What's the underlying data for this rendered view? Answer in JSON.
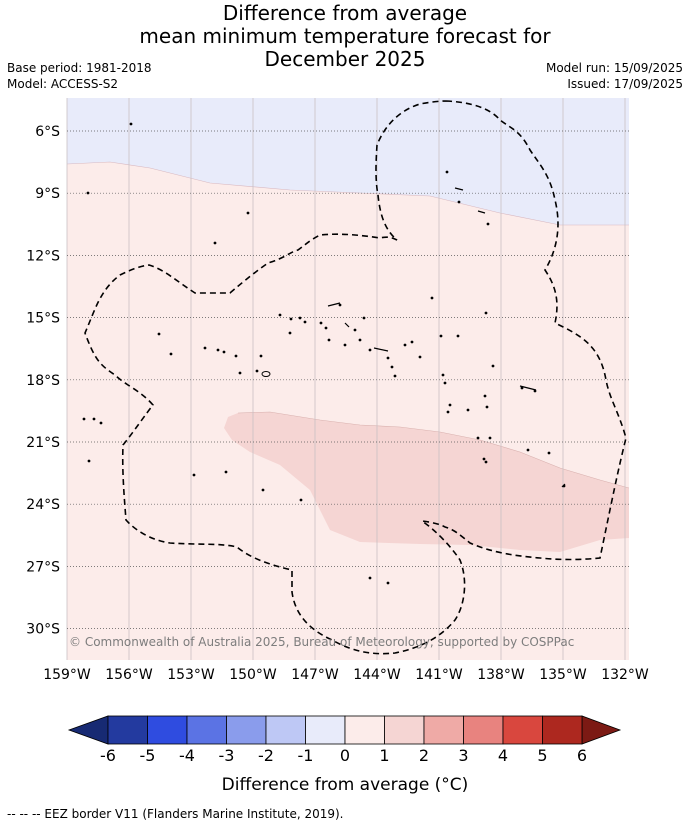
{
  "title": {
    "line1": "Difference from average",
    "line2": "mean minimum temperature forecast for",
    "line3": "December 2025"
  },
  "meta": {
    "base_period": "Base period: 1981-2018",
    "model": "Model: ACCESS-S2",
    "model_run": "Model run: 15/09/2025",
    "issued": "Issued: 17/09/2025"
  },
  "map": {
    "lat_ticks": [
      "6°S",
      "9°S",
      "12°S",
      "15°S",
      "18°S",
      "21°S",
      "24°S",
      "27°S",
      "30°S"
    ],
    "lon_ticks": [
      "159°W",
      "156°W",
      "153°W",
      "150°W",
      "147°W",
      "144°W",
      "141°W",
      "138°W",
      "135°W",
      "132°W"
    ],
    "copyright": "© Commonwealth of Australia 2025, Bureau of Meteorology, supported by COSPPac",
    "colors": {
      "band_minus1_0": "#e8ebfa",
      "band_0_1": "#fcecea",
      "band_1_2": "#f5d5d3"
    }
  },
  "colorbar": {
    "ticks": [
      "-6",
      "-5",
      "-4",
      "-3",
      "-2",
      "-1",
      "0",
      "1",
      "2",
      "3",
      "4",
      "5",
      "6"
    ],
    "colors": [
      "#233a9f",
      "#2f4ce0",
      "#5b73e4",
      "#8a9cec",
      "#bec8f5",
      "#e8ebfa",
      "#fcecea",
      "#f5d5d3",
      "#efaaa6",
      "#e8837f",
      "#d9473e",
      "#ad281f"
    ],
    "low_extend_color": "#172a73",
    "high_extend_color": "#7c1a14",
    "label": "Difference from average (°C)"
  },
  "footer": {
    "legend_line": "--  --  -- EEZ border V11 (Flanders Marine Institute, 2019)."
  }
}
